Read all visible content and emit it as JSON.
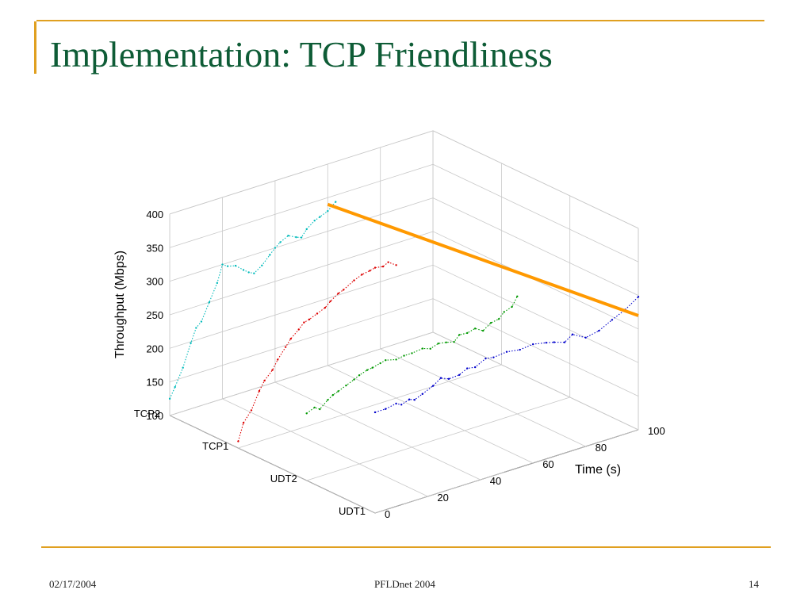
{
  "slide": {
    "title": "Implementation: TCP Friendliness",
    "footer_date": "02/17/2004",
    "footer_event": "PFLDnet 2004",
    "page_number": "14",
    "accent_color": "#E0A020",
    "title_color": "#0E5C36"
  },
  "chart_data": {
    "type": "line",
    "projection": "3d",
    "ylabel": "Throughput (Mbps)",
    "xlabel": "Time (s)",
    "xlim": [
      0,
      100
    ],
    "ylim": [
      100,
      400
    ],
    "x_ticks": [
      "0",
      "20",
      "40",
      "60",
      "80",
      "100"
    ],
    "y_ticks": [
      "100",
      "150",
      "200",
      "250",
      "300",
      "350",
      "400"
    ],
    "depth_labels": [
      "UDT1",
      "UDT2",
      "TCP1",
      "TCP2"
    ],
    "grid": true,
    "series": [
      {
        "name": "UDT1",
        "color": "#0000CC",
        "points": [
          [
            0,
            250
          ],
          [
            4,
            250
          ],
          [
            8,
            253
          ],
          [
            10,
            249
          ],
          [
            13,
            253
          ],
          [
            15,
            250
          ],
          [
            18,
            255
          ],
          [
            22,
            262
          ],
          [
            25,
            270
          ],
          [
            28,
            265
          ],
          [
            32,
            266
          ],
          [
            35,
            272
          ],
          [
            38,
            270
          ],
          [
            42,
            278
          ],
          [
            45,
            276
          ],
          [
            50,
            278
          ],
          [
            55,
            275
          ],
          [
            60,
            277
          ],
          [
            65,
            273
          ],
          [
            68,
            270
          ],
          [
            72,
            265
          ],
          [
            75,
            273
          ],
          [
            80,
            262
          ],
          [
            85,
            266
          ],
          [
            90,
            276
          ],
          [
            95,
            285
          ],
          [
            100,
            298
          ]
        ]
      },
      {
        "name": "UDT2",
        "color": "#009900",
        "points": [
          [
            0,
            200
          ],
          [
            3,
            205
          ],
          [
            5,
            200
          ],
          [
            8,
            210
          ],
          [
            10,
            215
          ],
          [
            12,
            218
          ],
          [
            15,
            223
          ],
          [
            18,
            228
          ],
          [
            20,
            232
          ],
          [
            23,
            236
          ],
          [
            25,
            237
          ],
          [
            28,
            240
          ],
          [
            30,
            242
          ],
          [
            34,
            238
          ],
          [
            37,
            240
          ],
          [
            40,
            240
          ],
          [
            44,
            242
          ],
          [
            47,
            238
          ],
          [
            50,
            242
          ],
          [
            53,
            240
          ],
          [
            56,
            237
          ],
          [
            58,
            245
          ],
          [
            61,
            244
          ],
          [
            64,
            247
          ],
          [
            67,
            240
          ],
          [
            70,
            248
          ],
          [
            73,
            250
          ],
          [
            75,
            258
          ],
          [
            78,
            262
          ],
          [
            80,
            275
          ]
        ]
      },
      {
        "name": "TCP1",
        "color": "#DD0000",
        "points": [
          [
            0,
            110
          ],
          [
            2,
            135
          ],
          [
            5,
            150
          ],
          [
            8,
            175
          ],
          [
            10,
            188
          ],
          [
            13,
            200
          ],
          [
            15,
            213
          ],
          [
            18,
            228
          ],
          [
            20,
            238
          ],
          [
            23,
            248
          ],
          [
            25,
            256
          ],
          [
            27,
            258
          ],
          [
            30,
            263
          ],
          [
            33,
            268
          ],
          [
            35,
            275
          ],
          [
            38,
            283
          ],
          [
            40,
            286
          ],
          [
            44,
            295
          ],
          [
            47,
            300
          ],
          [
            50,
            302
          ],
          [
            52,
            304
          ],
          [
            55,
            302
          ],
          [
            57,
            306
          ],
          [
            60,
            298
          ]
        ]
      },
      {
        "name": "TCP2",
        "color": "#00BBBB",
        "points": [
          [
            0,
            125
          ],
          [
            2,
            140
          ],
          [
            5,
            165
          ],
          [
            8,
            198
          ],
          [
            10,
            218
          ],
          [
            12,
            225
          ],
          [
            15,
            250
          ],
          [
            18,
            275
          ],
          [
            20,
            300
          ],
          [
            22,
            295
          ],
          [
            25,
            292
          ],
          [
            28,
            282
          ],
          [
            30,
            276
          ],
          [
            32,
            272
          ],
          [
            35,
            280
          ],
          [
            38,
            292
          ],
          [
            40,
            300
          ],
          [
            42,
            306
          ],
          [
            45,
            312
          ],
          [
            48,
            306
          ],
          [
            50,
            303
          ],
          [
            52,
            313
          ],
          [
            55,
            322
          ],
          [
            57,
            325
          ],
          [
            60,
            330
          ],
          [
            63,
            340
          ]
        ]
      }
    ],
    "annotation": {
      "type": "line",
      "color": "#FF9900",
      "from": [
        60,
        340
      ],
      "to": [
        100,
        270
      ]
    }
  }
}
